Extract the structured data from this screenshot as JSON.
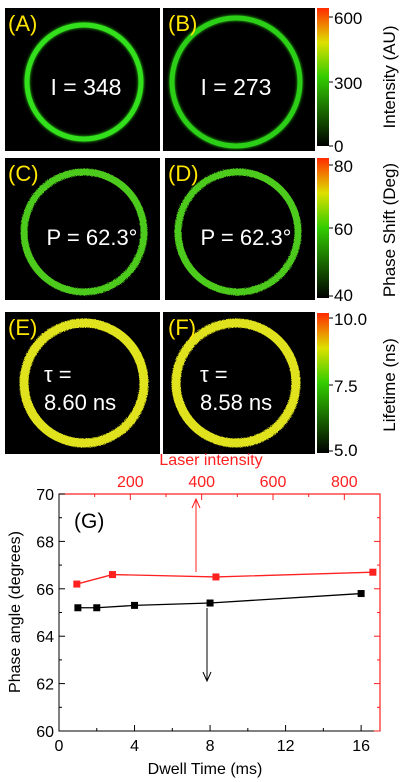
{
  "panels": [
    {
      "label": "(A)",
      "value": "I = 348",
      "ring": "#33e01a",
      "kind": "glow"
    },
    {
      "label": "(B)",
      "value": "I = 273",
      "ring": "#2ccf18",
      "kind": "glow"
    },
    {
      "label": "(C)",
      "value": "P = 62.3°",
      "ring": "#4ecb1c",
      "kind": "noisy"
    },
    {
      "label": "(D)",
      "value": "P = 62.3°",
      "ring": "#4ecb1c",
      "kind": "noisy"
    },
    {
      "label": "(E)",
      "value_line1": "τ =",
      "value_line2": "8.60 ns",
      "ring": "#dfe21c",
      "kind": "noisy"
    },
    {
      "label": "(F)",
      "value_line1": "τ =",
      "value_line2": "8.58 ns",
      "ring": "#dfe21c",
      "kind": "noisy"
    }
  ],
  "colorbars": [
    {
      "title": "Intensity (AU)",
      "ticks": [
        "600",
        "300",
        "0"
      ]
    },
    {
      "title": "Phase Shift (Deg)",
      "ticks": [
        "80",
        "60",
        "40"
      ]
    },
    {
      "title": "Lifetime (ns)",
      "ticks": [
        "10.0",
        "7.5",
        "5.0"
      ]
    }
  ],
  "colors": {
    "panel_bg": "#000000",
    "label": "#ffe600",
    "value_text": "#ffffff",
    "red": "#ff2020",
    "black": "#000000"
  },
  "chart_data": {
    "type": "line",
    "panel_label": "(G)",
    "xlabel": "Dwell Time (ms)",
    "ylabel": "Phase angle (degrees)",
    "x2label": "Laser intensity",
    "xlim": [
      0,
      17
    ],
    "ylim": [
      60,
      70
    ],
    "x2lim": [
      0,
      900
    ],
    "xticks": [
      "0",
      "4",
      "8",
      "12",
      "16"
    ],
    "yticks": [
      "60",
      "62",
      "64",
      "66",
      "68",
      "70"
    ],
    "x2ticks": [
      "200",
      "400",
      "600",
      "800"
    ],
    "series": [
      {
        "axis": "bottom",
        "color": "#000000",
        "x": [
          1,
          2,
          4,
          8,
          16
        ],
        "y": [
          65.2,
          65.2,
          65.3,
          65.4,
          65.8
        ]
      },
      {
        "axis": "top",
        "color": "#ff2020",
        "x": [
          50,
          150,
          440,
          880
        ],
        "y": [
          66.2,
          66.6,
          66.5,
          66.7
        ]
      }
    ]
  }
}
